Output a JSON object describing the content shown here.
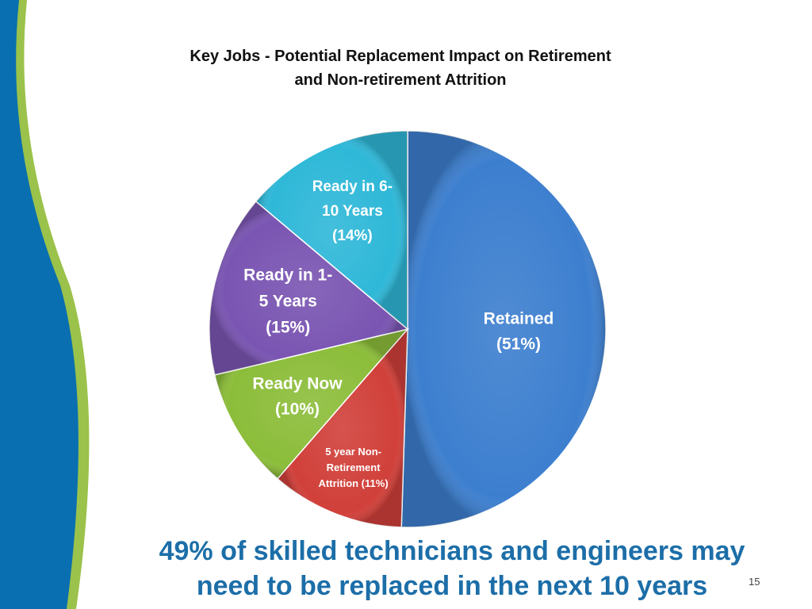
{
  "slide": {
    "footer_line1": "49% of skilled technicians and engineers may",
    "footer_line2": "need to be replaced in the next 10 years",
    "number": "15"
  },
  "colors": {
    "band_blue": "#0a6fb0",
    "band_green": "#9bc24a",
    "footer_text": "#1c6ea8"
  },
  "chart_data": {
    "type": "pie",
    "title_lines": [
      "Key Jobs - Potential Replacement Impact on Retirement",
      "and Non-retirement Attrition"
    ],
    "slices": [
      {
        "name": "Retained",
        "value": 51,
        "color": "#3d7fcf",
        "label_lines": [
          "Retained",
          "(51%)"
        ]
      },
      {
        "name": "5 year Non-Retirement Attrition",
        "value": 11,
        "color": "#d1403a",
        "label_lines": [
          "5 year Non-",
          "Retirement",
          "Attrition (11%)"
        ]
      },
      {
        "name": "Ready Now",
        "value": 10,
        "color": "#8cbd3a",
        "label_lines": [
          "Ready Now",
          "(10%)"
        ]
      },
      {
        "name": "Ready in 1-5 Years",
        "value": 15,
        "color": "#7a55b2",
        "label_lines": [
          "Ready in 1-",
          "5 Years",
          "(15%)"
        ]
      },
      {
        "name": "Ready in 6-10 Years",
        "value": 14,
        "color": "#2fb8d8",
        "label_lines": [
          "Ready in 6-",
          "10 Years",
          "(14%)"
        ]
      }
    ]
  }
}
